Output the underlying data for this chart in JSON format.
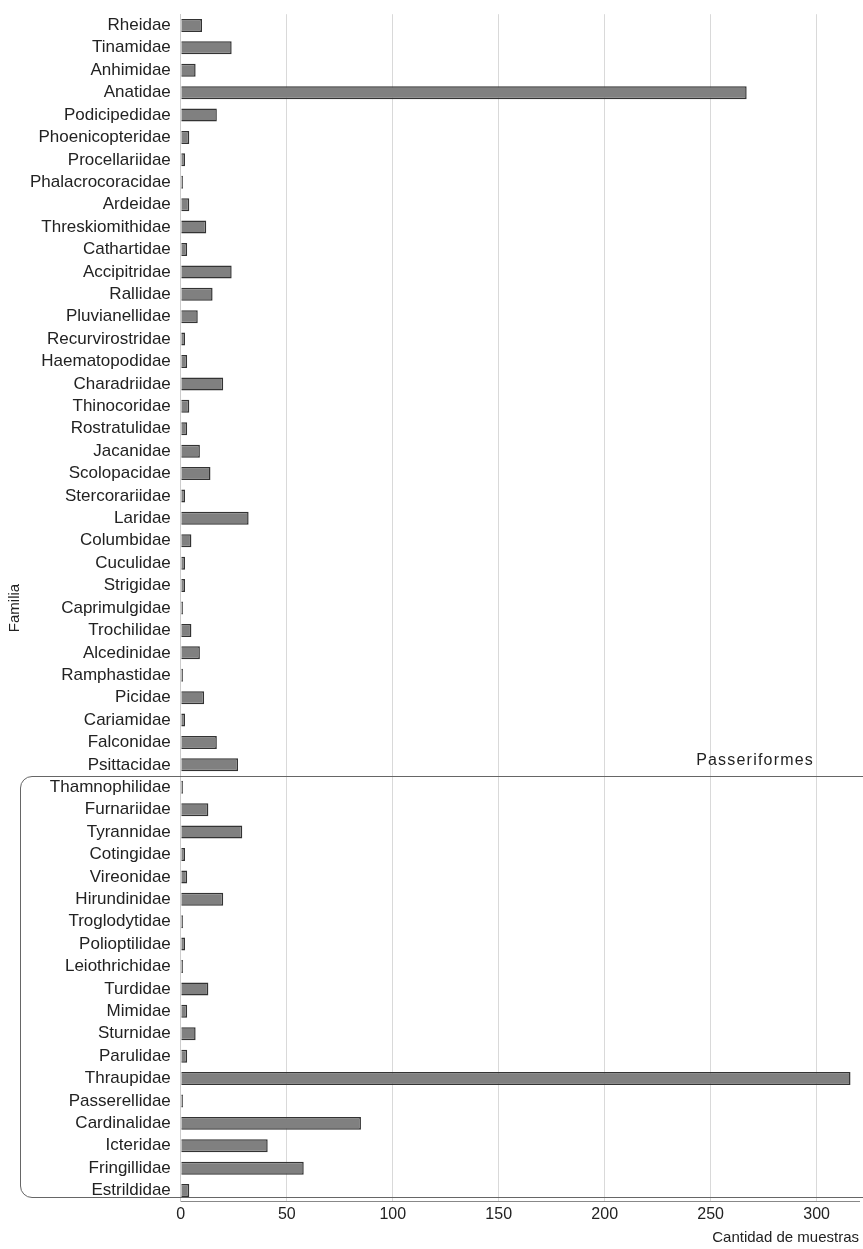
{
  "chart_data": {
    "type": "bar",
    "orientation": "horizontal",
    "xlabel": "Cantidad de muestras",
    "ylabel": "Familia",
    "categories": [
      "Rheidae",
      "Tinamidae",
      "Anhimidae",
      "Anatidae",
      "Podicipedidae",
      "Phoenicopteridae",
      "Procellariidae",
      "Phalacrocoracidae",
      "Ardeidae",
      "Threskiomithidae",
      "Cathartidae",
      "Accipitridae",
      "Rallidae",
      "Pluvianellidae",
      "Recurvirostridae",
      "Haematopodidae",
      "Charadriidae",
      "Thinocoridae",
      "Rostratulidae",
      "Jacanidae",
      "Scolopacidae",
      "Stercorariidae",
      "Laridae",
      "Columbidae",
      "Cuculidae",
      "Strigidae",
      "Caprimulgidae",
      "Trochilidae",
      "Alcedinidae",
      "Ramphastidae",
      "Picidae",
      "Cariamidae",
      "Falconidae",
      "Psittacidae",
      "Thamnophilidae",
      "Furnariidae",
      "Tyrannidae",
      "Cotingidae",
      "Vireonidae",
      "Hirundinidae",
      "Troglodytidae",
      "Polioptilidae",
      "Leiothrichidae",
      "Turdidae",
      "Mimidae",
      "Sturnidae",
      "Parulidae",
      "Thraupidae",
      "Passerellidae",
      "Cardinalidae",
      "Icteridae",
      "Fringillidae",
      "Estrildidae"
    ],
    "values": [
      10,
      24,
      7,
      267,
      17,
      4,
      2,
      1,
      4,
      12,
      3,
      24,
      15,
      8,
      2,
      3,
      20,
      4,
      3,
      9,
      14,
      2,
      32,
      5,
      2,
      2,
      1,
      5,
      9,
      1,
      11,
      2,
      17,
      27,
      1,
      13,
      29,
      2,
      3,
      20,
      1,
      2,
      1,
      13,
      3,
      7,
      3,
      316,
      1,
      85,
      41,
      58,
      4
    ],
    "color": "#808080",
    "xlim": [
      0,
      320
    ],
    "xticks": [
      0,
      50,
      100,
      150,
      200,
      250,
      300
    ],
    "grid": "x",
    "annotations": [
      "Passeriformes"
    ]
  }
}
